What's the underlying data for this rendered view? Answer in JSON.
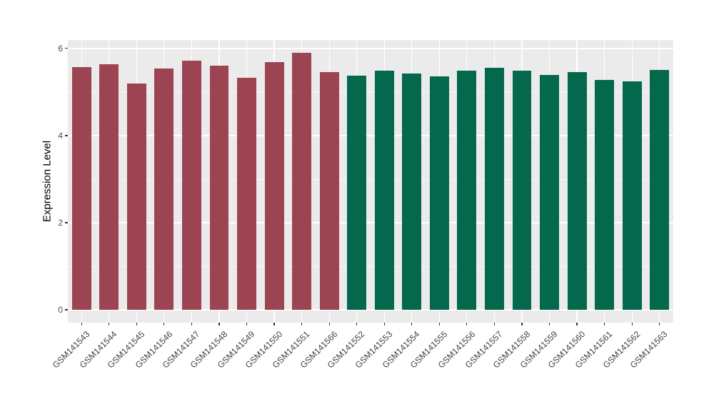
{
  "chart_data": {
    "type": "bar",
    "title": "",
    "ylabel": "Expression Level",
    "xlabel": "",
    "ylim": [
      0,
      6
    ],
    "yticks": [
      0,
      2,
      4,
      6
    ],
    "minor_yticks": [
      1,
      3,
      5
    ],
    "grid": "on",
    "legend": "none",
    "panel_background": "#EBEBEB",
    "grid_color": "#FFFFFF",
    "axis_text_color": "#4D4D4D",
    "categories": [
      "GSM141543",
      "GSM141544",
      "GSM141545",
      "GSM141546",
      "GSM141547",
      "GSM141548",
      "GSM141549",
      "GSM141550",
      "GSM141551",
      "GSM141566",
      "GSM141552",
      "GSM141553",
      "GSM141554",
      "GSM141555",
      "GSM141556",
      "GSM141557",
      "GSM141558",
      "GSM141559",
      "GSM141560",
      "GSM141561",
      "GSM141562",
      "GSM141563"
    ],
    "values": [
      5.58,
      5.63,
      5.2,
      5.54,
      5.72,
      5.61,
      5.33,
      5.68,
      5.9,
      5.45,
      5.38,
      5.49,
      5.43,
      5.36,
      5.49,
      5.55,
      5.49,
      5.4,
      5.46,
      5.28,
      5.25,
      5.51
    ],
    "groups": [
      "group1",
      "group1",
      "group1",
      "group1",
      "group1",
      "group1",
      "group1",
      "group1",
      "group1",
      "group1",
      "group2",
      "group2",
      "group2",
      "group2",
      "group2",
      "group2",
      "group2",
      "group2",
      "group2",
      "group2",
      "group2",
      "group2"
    ],
    "group_colors": {
      "group1": "#9C4452",
      "group2": "#03684C"
    }
  }
}
